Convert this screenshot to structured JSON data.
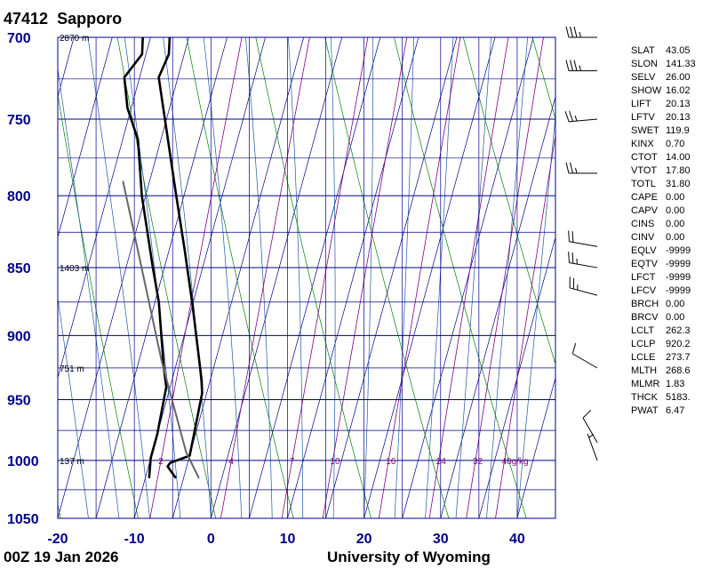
{
  "header": {
    "station_id": "47412",
    "station_name": "Sapporo"
  },
  "footer": {
    "time": "00Z 19 Jan 2026",
    "source": "University of Wyoming"
  },
  "colors": {
    "grid": "#00008b",
    "axis_text": "#00008b",
    "isotherm": "#00008b",
    "dry_adiabat": "#008000",
    "moist_adiabat": "#1e5a9e",
    "mixing_ratio": "#800080",
    "sounding": "#000000",
    "parcel": "#666666"
  },
  "indices": [
    {
      "key": "SLAT",
      "value": "43.05"
    },
    {
      "key": "SLON",
      "value": "141.33"
    },
    {
      "key": "SELV",
      "value": "26.00"
    },
    {
      "key": "SHOW",
      "value": "16.02"
    },
    {
      "key": "LIFT",
      "value": "20.13"
    },
    {
      "key": "LFTV",
      "value": "20.13"
    },
    {
      "key": "SWET",
      "value": "119.9"
    },
    {
      "key": "KINX",
      "value": "0.70"
    },
    {
      "key": "CTOT",
      "value": "14.00"
    },
    {
      "key": "VTOT",
      "value": "17.80"
    },
    {
      "key": "TOTL",
      "value": "31.80"
    },
    {
      "key": "CAPE",
      "value": "0.00"
    },
    {
      "key": "CAPV",
      "value": "0.00"
    },
    {
      "key": "CINS",
      "value": "0.00"
    },
    {
      "key": "CINV",
      "value": "0.00"
    },
    {
      "key": "EQLV",
      "value": "-9999"
    },
    {
      "key": "EQTV",
      "value": "-9999"
    },
    {
      "key": "LFCT",
      "value": "-9999"
    },
    {
      "key": "LFCV",
      "value": "-9999"
    },
    {
      "key": "BRCH",
      "value": "0.00"
    },
    {
      "key": "BRCV",
      "value": "0.00"
    },
    {
      "key": "LCLT",
      "value": "262.3"
    },
    {
      "key": "LCLP",
      "value": "920.2"
    },
    {
      "key": "LCLE",
      "value": "273.7"
    },
    {
      "key": "MLTH",
      "value": "268.6"
    },
    {
      "key": "MLMR",
      "value": "1.83"
    },
    {
      "key": "THCK",
      "value": "5183."
    },
    {
      "key": "PWAT",
      "value": "6.47"
    }
  ],
  "chart_data": {
    "type": "line",
    "pressure_range": [
      1050,
      700
    ],
    "temperature_range": [
      -20,
      45
    ],
    "pressure_ticks": [
      "700",
      "750",
      "800",
      "850",
      "900",
      "950",
      "1000",
      "1050"
    ],
    "temperature_ticks": [
      "-20",
      "-10",
      "0",
      "10",
      "20",
      "30",
      "40"
    ],
    "height_labels": [
      {
        "p": 700,
        "label": "2870 m"
      },
      {
        "p": 850,
        "label": "1403 m"
      },
      {
        "p": 925,
        "label": "751 m"
      },
      {
        "p": 1000,
        "label": "137 m"
      }
    ],
    "mixing_ratio_labels": [
      "2",
      "4",
      "7",
      "10",
      "16",
      "24",
      "32",
      "40g/kg"
    ],
    "mixing_ratio_values": [
      2,
      4,
      7,
      10,
      16,
      24,
      32,
      40
    ],
    "series": [
      {
        "points": [
          {
            "p": 1015,
            "t": -6.0
          },
          {
            "p": 1005,
            "t": -7.5
          },
          {
            "p": 1002,
            "t": -7.3
          },
          {
            "p": 996,
            "t": -5.0
          },
          {
            "p": 978,
            "t": -5.2
          },
          {
            "p": 945,
            "t": -5.6
          },
          {
            "p": 935,
            "t": -6.1
          },
          {
            "p": 877,
            "t": -10.0
          },
          {
            "p": 837,
            "t": -13.0
          },
          {
            "p": 800,
            "t": -16.0
          },
          {
            "p": 724,
            "t": -22.5
          },
          {
            "p": 710,
            "t": -22.0
          },
          {
            "p": 700,
            "t": -22.5
          }
        ]
      },
      {
        "points": [
          {
            "p": 1015,
            "t": -9.5
          },
          {
            "p": 998,
            "t": -10.0
          },
          {
            "p": 978,
            "t": -10.0
          },
          {
            "p": 940,
            "t": -10.5
          },
          {
            "p": 925,
            "t": -11.5
          },
          {
            "p": 875,
            "t": -14.5
          },
          {
            "p": 850,
            "t": -16.5
          },
          {
            "p": 800,
            "t": -20.5
          },
          {
            "p": 763,
            "t": -23.0
          },
          {
            "p": 743,
            "t": -25.5
          },
          {
            "p": 724,
            "t": -27.0
          },
          {
            "p": 710,
            "t": -25.5
          },
          {
            "p": 700,
            "t": -26.0
          }
        ]
      },
      {
        "points": [
          {
            "p": 1015,
            "t": -3.0
          },
          {
            "p": 993,
            "t": -5.6
          },
          {
            "p": 920,
            "t": -12.0
          },
          {
            "p": 790,
            "t": -23.5
          }
        ]
      }
    ],
    "wind_barbs": [
      {
        "p": 1000,
        "direction": 340,
        "speed_kt": 5
      },
      {
        "p": 985,
        "direction": 330,
        "speed_kt": 10
      },
      {
        "p": 925,
        "direction": 300,
        "speed_kt": 10
      },
      {
        "p": 870,
        "direction": 285,
        "speed_kt": 25
      },
      {
        "p": 850,
        "direction": 280,
        "speed_kt": 25
      },
      {
        "p": 835,
        "direction": 280,
        "speed_kt": 20
      },
      {
        "p": 785,
        "direction": 270,
        "speed_kt": 25
      },
      {
        "p": 750,
        "direction": 265,
        "speed_kt": 25
      },
      {
        "p": 720,
        "direction": 270,
        "speed_kt": 35
      },
      {
        "p": 700,
        "direction": 270,
        "speed_kt": 35
      }
    ]
  }
}
